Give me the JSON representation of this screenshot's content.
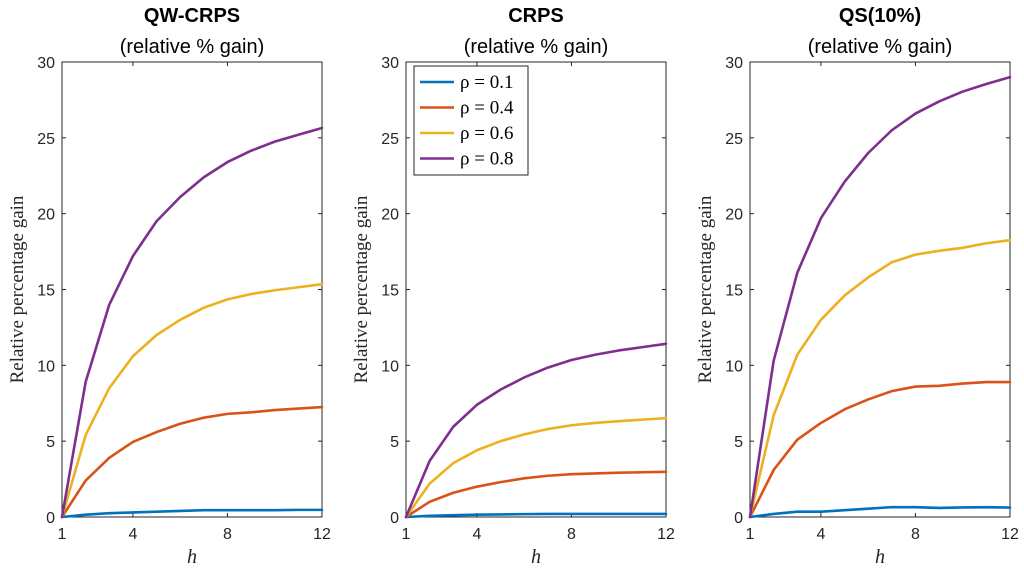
{
  "chart_data": [
    {
      "type": "line",
      "title": "QW-CRPS",
      "subtitle": "(relative % gain)",
      "ylabel": "Relative percentage gain",
      "xlabel": "h",
      "xlim": [
        1,
        12
      ],
      "ylim": [
        0,
        30
      ],
      "xticks": [
        "1",
        "4",
        "8",
        "12"
      ],
      "yticks": [
        "0",
        "5",
        "10",
        "15",
        "20",
        "25",
        "30"
      ],
      "x": [
        1,
        2,
        3,
        4,
        5,
        6,
        7,
        8,
        9,
        10,
        11,
        12
      ],
      "legend": false,
      "series": [
        {
          "name": "ρ = 0.1",
          "color": "#0072BD",
          "values": [
            0,
            0.15,
            0.25,
            0.3,
            0.35,
            0.4,
            0.45,
            0.45,
            0.45,
            0.45,
            0.47,
            0.47
          ]
        },
        {
          "name": "ρ = 0.4",
          "color": "#D95319",
          "values": [
            0,
            2.4,
            3.9,
            4.95,
            5.6,
            6.15,
            6.55,
            6.8,
            6.9,
            7.05,
            7.15,
            7.25
          ]
        },
        {
          "name": "ρ = 0.6",
          "color": "#EDB120",
          "values": [
            0,
            5.4,
            8.5,
            10.6,
            12.0,
            13.0,
            13.8,
            14.35,
            14.7,
            14.95,
            15.15,
            15.35
          ]
        },
        {
          "name": "ρ = 0.8",
          "color": "#7E2F8E",
          "values": [
            0,
            8.9,
            14.0,
            17.2,
            19.5,
            21.1,
            22.4,
            23.4,
            24.15,
            24.75,
            25.2,
            25.65
          ]
        }
      ]
    },
    {
      "type": "line",
      "title": "CRPS",
      "subtitle": "(relative % gain)",
      "ylabel": "Relative percentage gain",
      "xlabel": "h",
      "xlim": [
        1,
        12
      ],
      "ylim": [
        0,
        30
      ],
      "xticks": [
        "1",
        "4",
        "8",
        "12"
      ],
      "yticks": [
        "0",
        "5",
        "10",
        "15",
        "20",
        "25",
        "30"
      ],
      "x": [
        1,
        2,
        3,
        4,
        5,
        6,
        7,
        8,
        9,
        10,
        11,
        12
      ],
      "legend": true,
      "legend_position": "top-left",
      "series": [
        {
          "name": "ρ = 0.1",
          "color": "#0072BD",
          "values": [
            0,
            0.08,
            0.12,
            0.15,
            0.17,
            0.19,
            0.2,
            0.2,
            0.2,
            0.2,
            0.2,
            0.2
          ]
        },
        {
          "name": "ρ = 0.4",
          "color": "#D95319",
          "values": [
            0,
            1.0,
            1.6,
            2.0,
            2.3,
            2.55,
            2.72,
            2.82,
            2.87,
            2.92,
            2.95,
            2.98
          ]
        },
        {
          "name": "ρ = 0.6",
          "color": "#EDB120",
          "values": [
            0,
            2.2,
            3.55,
            4.4,
            5.0,
            5.45,
            5.8,
            6.05,
            6.2,
            6.32,
            6.42,
            6.52
          ]
        },
        {
          "name": "ρ = 0.8",
          "color": "#7E2F8E",
          "values": [
            0,
            3.7,
            5.95,
            7.4,
            8.4,
            9.2,
            9.85,
            10.35,
            10.7,
            10.98,
            11.2,
            11.42
          ]
        }
      ]
    },
    {
      "type": "line",
      "title": "QS(10%)",
      "subtitle": "(relative % gain)",
      "ylabel": "Relative percentage gain",
      "xlabel": "h",
      "xlim": [
        1,
        12
      ],
      "ylim": [
        0,
        30
      ],
      "xticks": [
        "1",
        "4",
        "8",
        "12"
      ],
      "yticks": [
        "0",
        "5",
        "10",
        "15",
        "20",
        "25",
        "30"
      ],
      "x": [
        1,
        2,
        3,
        4,
        5,
        6,
        7,
        8,
        9,
        10,
        11,
        12
      ],
      "legend": false,
      "series": [
        {
          "name": "ρ = 0.1",
          "color": "#0072BD",
          "values": [
            0,
            0.2,
            0.35,
            0.35,
            0.45,
            0.55,
            0.65,
            0.65,
            0.6,
            0.63,
            0.65,
            0.62
          ]
        },
        {
          "name": "ρ = 0.4",
          "color": "#D95319",
          "values": [
            0,
            3.1,
            5.1,
            6.2,
            7.1,
            7.75,
            8.3,
            8.6,
            8.65,
            8.8,
            8.9,
            8.9
          ]
        },
        {
          "name": "ρ = 0.6",
          "color": "#EDB120",
          "values": [
            0,
            6.7,
            10.7,
            13.0,
            14.6,
            15.8,
            16.8,
            17.3,
            17.55,
            17.75,
            18.05,
            18.25
          ]
        },
        {
          "name": "ρ = 0.8",
          "color": "#7E2F8E",
          "values": [
            0,
            10.3,
            16.1,
            19.7,
            22.1,
            24.0,
            25.5,
            26.6,
            27.4,
            28.05,
            28.55,
            29.0
          ]
        }
      ]
    }
  ]
}
